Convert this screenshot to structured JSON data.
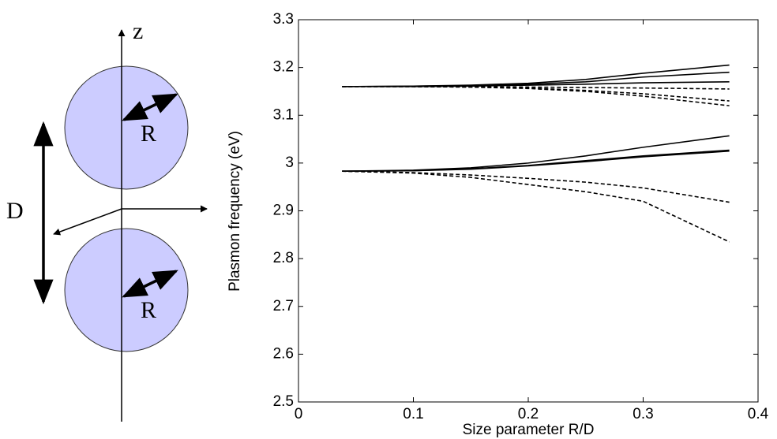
{
  "diagram": {
    "axis_label": "z",
    "radius_labels": [
      "R",
      "R"
    ],
    "distance_label": "D"
  },
  "chart_data": {
    "type": "line",
    "xlabel": "Size parameter R/D",
    "ylabel": "Plasmon frequency (eV)",
    "x": [
      0.038,
      0.1,
      0.15,
      0.2,
      0.25,
      0.3,
      0.375
    ],
    "series": [
      {
        "color": "#000000",
        "dashed": false,
        "values": [
          3.16,
          3.161,
          3.163,
          3.167,
          3.175,
          3.188,
          3.205
        ]
      },
      {
        "color": "#000000",
        "dashed": false,
        "values": [
          3.16,
          3.161,
          3.162,
          3.165,
          3.17,
          3.18,
          3.19
        ]
      },
      {
        "color": "#000000",
        "dashed": false,
        "values": [
          3.16,
          3.16,
          3.161,
          3.163,
          3.165,
          3.168,
          3.17
        ]
      },
      {
        "color": "#000000",
        "dashed": true,
        "values": [
          3.16,
          3.16,
          3.16,
          3.159,
          3.158,
          3.157,
          3.155
        ]
      },
      {
        "color": "#000000",
        "dashed": true,
        "values": [
          3.16,
          3.16,
          3.159,
          3.157,
          3.152,
          3.145,
          3.13
        ]
      },
      {
        "color": "#000000",
        "dashed": true,
        "values": [
          3.16,
          3.16,
          3.159,
          3.156,
          3.15,
          3.14,
          3.12
        ]
      },
      {
        "color": "#000000",
        "dashed": false,
        "values": [
          2.983,
          2.985,
          2.99,
          3.0,
          3.015,
          3.033,
          3.057
        ]
      },
      {
        "color": "#000000",
        "dashed": false,
        "values": [
          2.983,
          2.984,
          2.988,
          2.995,
          3.005,
          3.015,
          3.027
        ]
      },
      {
        "color": "#000000",
        "dashed": false,
        "values": [
          2.983,
          2.984,
          2.987,
          2.994,
          3.003,
          3.013,
          3.025
        ]
      },
      {
        "color": "#000000",
        "dashed": true,
        "values": [
          2.983,
          2.98,
          2.975,
          2.968,
          2.96,
          2.948,
          2.918
        ]
      },
      {
        "color": "#000000",
        "dashed": true,
        "values": [
          2.983,
          2.979,
          2.97,
          2.955,
          2.94,
          2.92,
          2.835
        ]
      }
    ],
    "xlim": [
      0,
      0.4
    ],
    "xticks": [
      0,
      0.1,
      0.2,
      0.3,
      0.4
    ],
    "ylim": [
      2.5,
      3.3
    ],
    "yticks": [
      2.5,
      2.6,
      2.7,
      2.8,
      2.9,
      3,
      3.1,
      3.2,
      3.3
    ],
    "grid": false
  }
}
